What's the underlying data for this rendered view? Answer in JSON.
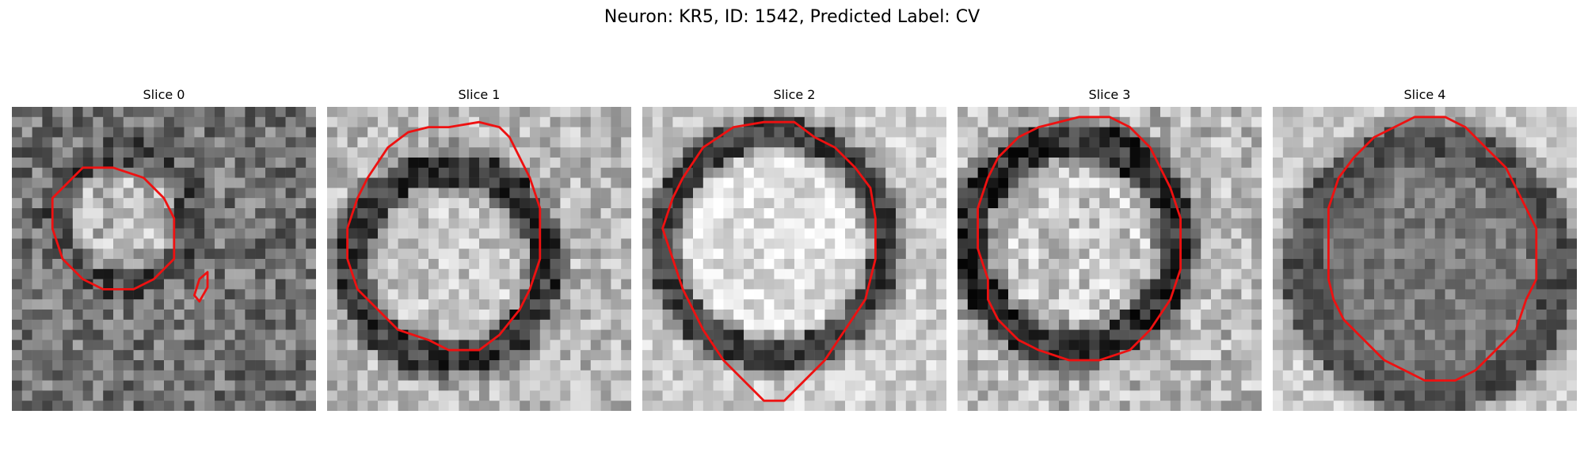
{
  "figure": {
    "title": "Neuron: KR5, ID: 1542, Predicted Label: CV"
  },
  "panels": [
    {
      "title": "Slice 0",
      "image": "microscopy slice grayscale with red contour"
    },
    {
      "title": "Slice 1",
      "image": "microscopy slice grayscale with red contour"
    },
    {
      "title": "Slice 2",
      "image": "microscopy slice grayscale with red contour"
    },
    {
      "title": "Slice 3",
      "image": "microscopy slice grayscale with red contour"
    },
    {
      "title": "Slice 4",
      "image": "microscopy slice grayscale with red contour"
    }
  ],
  "contour_color": "#ee1111"
}
